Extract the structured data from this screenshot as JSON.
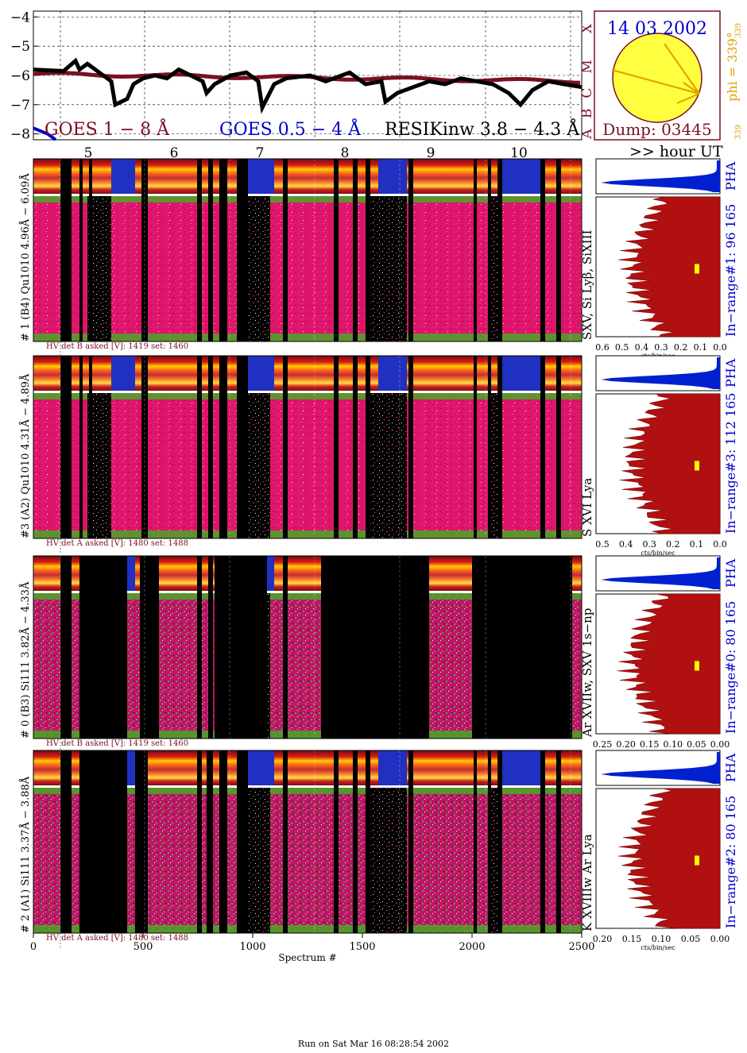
{
  "chart_data": {
    "type": "heatmap",
    "date": "14 03 2002",
    "dump": "Dump: 03445",
    "phi_label": "phi = 339°",
    "phi_sub": "339",
    "phi_small": "339",
    "goes_yticks": [
      "−4",
      "−5",
      "−6",
      "−7",
      "−8"
    ],
    "goes_ylim": [
      -8.2,
      -3.8
    ],
    "goes_classes": [
      "A",
      "B",
      "C",
      "M",
      "X"
    ],
    "goes_legend": [
      {
        "label": "GOES 1 − 8 Å",
        "color": "#7a1020"
      },
      {
        "label": "GOES 0.5 − 4 Å",
        "color": "#0000cc"
      },
      {
        "label": "RESIKinw 3.8 − 4.3 Å",
        "color": "#000000"
      }
    ],
    "hour_ticks": [
      "5",
      "6",
      "7",
      "8",
      "9",
      "10"
    ],
    "hour_label": ">> hour UT",
    "x_label": "Spectrum #",
    "x_ticks": [
      "0",
      "500",
      "1000",
      "1500",
      "2000",
      "2500"
    ],
    "xlim": [
      0,
      2500
    ],
    "panels": [
      {
        "id": "ch1",
        "ylabel": "# 1 (B4) Qu1010 4.96Å − 6.09Å",
        "line_label": "SXV, Si Lyβ, SiXIII",
        "inrange": "In−range#1:  96 165",
        "hv": "HV det B asked [V]:  1419 set:  1460",
        "pha_ticks": [
          "0.6",
          "0.5",
          "0.4",
          "0.3",
          "0.2",
          "0.1",
          "0.0"
        ],
        "pha_unit": "cts/bin/sec"
      },
      {
        "id": "ch3",
        "ylabel": "#3 (A2) Qu1010  4.31Å − 4.89Å",
        "line_label": "S XVI Lya",
        "inrange": "In−range#3:  112 165",
        "hv": "HV det A asked [V]:  1480 set:  1488",
        "pha_ticks": [
          "0.5",
          "0.4",
          "0.3",
          "0.2",
          "0.1",
          "0.0"
        ],
        "pha_unit": "cts/bin/sec"
      },
      {
        "id": "ch0",
        "ylabel": "# 0 (B3) Si111  3.82Å − 4.33Å",
        "line_label": "Ar XVIIw,  SXV 1s−np",
        "inrange": "In−range#0:  80 165",
        "hv": "HV det B asked [V]:  1419 set:  1460",
        "pha_ticks": [
          "0.25",
          "0.20",
          "0.15",
          "0.10",
          "0.05",
          "0.00"
        ],
        "pha_unit": "cts/bin/sec"
      },
      {
        "id": "ch2",
        "ylabel": "# 2 (A1) Si111  3.37Å − 3.88Å",
        "line_label": "K XVIIIw  Ar Lya",
        "inrange": "In−range#2:  80 165",
        "hv": "HV det A asked [V]:  1480 set:  1488",
        "pha_ticks": [
          "0.20",
          "0.15",
          "0.10",
          "0.05",
          "0.00"
        ],
        "pha_unit": "cts/bin/sec"
      }
    ],
    "pha_label": "PHA"
  },
  "footer": "Run on Sat Mar 16 08:28:54 2002"
}
